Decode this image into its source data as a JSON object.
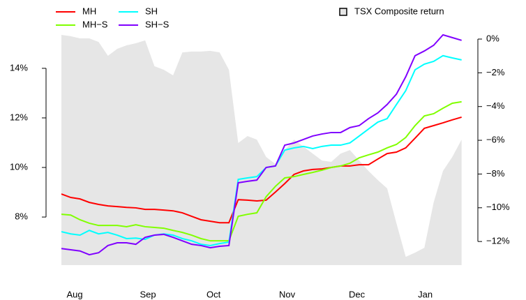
{
  "chart_data": {
    "type": "line",
    "x": [
      0,
      4,
      8,
      12,
      16,
      20,
      24,
      28,
      32,
      36,
      40,
      44,
      48,
      52,
      56,
      60,
      64,
      68,
      72,
      76,
      80,
      84,
      88,
      92,
      96,
      100,
      104,
      108,
      112,
      116,
      120,
      124,
      128,
      132,
      136,
      140,
      144,
      148,
      152,
      156,
      160,
      164,
      168,
      172
    ],
    "xlim": [
      0,
      173
    ],
    "xticks": [
      {
        "value": 5.7,
        "label": "Aug"
      },
      {
        "value": 37.2,
        "label": "Sep"
      },
      {
        "value": 65.4,
        "label": "Oct"
      },
      {
        "value": 97,
        "label": "Nov"
      },
      {
        "value": 127,
        "label": "Dec"
      },
      {
        "value": 156.4,
        "label": "Jan"
      }
    ],
    "ylim": [
      6.06,
      15.49
    ],
    "yticks": [
      {
        "value": 8,
        "label": "8%"
      },
      {
        "value": 10,
        "label": "10%"
      },
      {
        "value": 12,
        "label": "12%"
      },
      {
        "value": 14,
        "label": "14%"
      }
    ],
    "y2lim": [
      -13.4,
      0.455
    ],
    "y2ticks": [
      {
        "value": -12,
        "label": "−12%"
      },
      {
        "value": -10,
        "label": "−10%"
      },
      {
        "value": -8,
        "label": "−8%"
      },
      {
        "value": -6,
        "label": "−6%"
      },
      {
        "value": -4,
        "label": "−4%"
      },
      {
        "value": -2,
        "label": "−2%"
      },
      {
        "value": 0,
        "label": "0%"
      }
    ],
    "series": [
      {
        "name": "TSX Composite return",
        "type": "area",
        "axis": "y2",
        "color": "#e6e6e6",
        "values": [
          0.25,
          0.17,
          0.04,
          0.04,
          -0.17,
          -0.99,
          -0.58,
          -0.37,
          -0.25,
          -0.08,
          -1.61,
          -1.82,
          -2.15,
          -0.79,
          -0.74,
          -0.74,
          -0.7,
          -0.79,
          -1.82,
          -6.16,
          -5.75,
          -5.96,
          -6.99,
          -7.41,
          -6.58,
          -5.96,
          -6.37,
          -6.79,
          -7.2,
          -7.28,
          -6.79,
          -6.58,
          -7.2,
          -7.82,
          -8.36,
          -8.85,
          -10.92,
          -12.91,
          -12.66,
          -12.37,
          -9.68,
          -7.82,
          -6.99,
          -5.96
        ]
      },
      {
        "name": "MH",
        "axis": "y",
        "color": "#ff0000",
        "values": [
          8.93,
          8.79,
          8.73,
          8.59,
          8.51,
          8.45,
          8.42,
          8.39,
          8.37,
          8.31,
          8.31,
          8.28,
          8.25,
          8.17,
          8.03,
          7.89,
          7.83,
          7.77,
          7.77,
          8.7,
          8.68,
          8.65,
          8.68,
          9.01,
          9.35,
          9.72,
          9.86,
          9.92,
          9.94,
          10.0,
          10.06,
          10.06,
          10.11,
          10.11,
          10.34,
          10.56,
          10.62,
          10.79,
          11.18,
          11.58,
          11.69,
          11.8,
          11.92,
          12.03
        ]
      },
      {
        "name": "MH−S",
        "axis": "y",
        "color": "#80ff00",
        "values": [
          8.11,
          8.08,
          7.89,
          7.75,
          7.66,
          7.66,
          7.66,
          7.61,
          7.69,
          7.61,
          7.58,
          7.55,
          7.46,
          7.38,
          7.27,
          7.13,
          7.04,
          7.04,
          7.04,
          8.03,
          8.11,
          8.17,
          8.82,
          9.24,
          9.58,
          9.63,
          9.72,
          9.8,
          9.89,
          10.0,
          10.06,
          10.17,
          10.39,
          10.51,
          10.62,
          10.79,
          10.93,
          11.21,
          11.69,
          12.08,
          12.17,
          12.39,
          12.59,
          12.65
        ]
      },
      {
        "name": "SH",
        "axis": "y",
        "color": "#00ffff",
        "values": [
          7.41,
          7.32,
          7.27,
          7.46,
          7.32,
          7.38,
          7.27,
          7.13,
          7.15,
          7.1,
          7.27,
          7.32,
          7.27,
          7.13,
          7.04,
          6.9,
          6.85,
          6.93,
          6.99,
          9.52,
          9.58,
          9.63,
          10.0,
          10.06,
          10.7,
          10.79,
          10.85,
          10.76,
          10.85,
          10.9,
          10.9,
          10.99,
          11.27,
          11.55,
          11.83,
          11.97,
          12.54,
          13.1,
          13.94,
          14.17,
          14.28,
          14.51,
          14.42,
          14.34
        ]
      },
      {
        "name": "SH−S",
        "axis": "y",
        "color": "#8000ff",
        "values": [
          6.73,
          6.68,
          6.63,
          6.48,
          6.56,
          6.85,
          6.96,
          6.96,
          6.9,
          7.18,
          7.27,
          7.3,
          7.18,
          7.04,
          6.9,
          6.85,
          6.76,
          6.82,
          6.85,
          9.38,
          9.44,
          9.49,
          10.0,
          10.06,
          10.9,
          10.99,
          11.13,
          11.27,
          11.35,
          11.41,
          11.41,
          11.61,
          11.69,
          11.97,
          12.2,
          12.54,
          12.96,
          13.66,
          14.51,
          14.7,
          14.93,
          15.35,
          15.24,
          15.13
        ]
      }
    ]
  }
}
